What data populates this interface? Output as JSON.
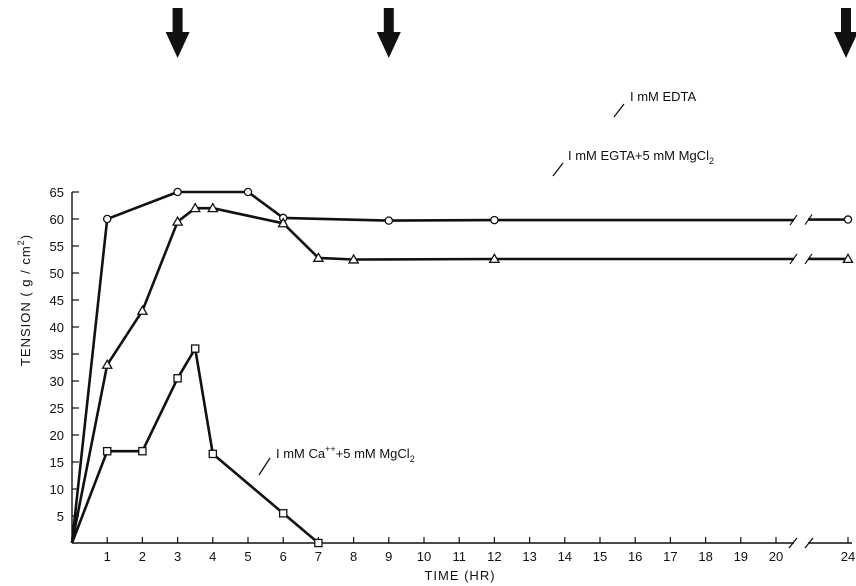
{
  "chart_data": {
    "type": "line",
    "xlabel": "TIME (HR)",
    "ylabel": "TENSION (g/cm²)",
    "ylabel_parts": {
      "main": "TENSION ( g / cm",
      "sup": "2",
      "close": ")"
    },
    "ylim": [
      0,
      65
    ],
    "xlim": [
      0,
      24
    ],
    "x_axis_break_between": [
      20,
      24
    ],
    "grid": false,
    "legend": "none",
    "y_ticks": [
      5,
      10,
      15,
      20,
      25,
      30,
      35,
      40,
      45,
      50,
      55,
      60,
      65
    ],
    "x_ticks": [
      1,
      2,
      3,
      4,
      5,
      6,
      7,
      8,
      9,
      10,
      11,
      12,
      13,
      14,
      15,
      16,
      17,
      18,
      19,
      20,
      24
    ],
    "arrows_at_x": [
      3,
      9,
      24
    ],
    "series": [
      {
        "name": "I mM EDTA",
        "label_parts": {
          "a": "I mM EDTA"
        },
        "marker": "circle",
        "x": [
          0,
          1,
          3,
          5,
          6,
          9,
          12,
          24
        ],
        "y": [
          0,
          60,
          65,
          65,
          60.2,
          59.7,
          59.8,
          59.9
        ]
      },
      {
        "name": "I mM EGTA+5 mM MgCl2",
        "label_parts": {
          "a": "I mM EGTA+5 mM MgCl",
          "sub": "2"
        },
        "marker": "triangle",
        "x": [
          0,
          1,
          2,
          3,
          3.5,
          4,
          6,
          7,
          8,
          12,
          24
        ],
        "y": [
          0,
          33,
          43,
          59.5,
          62,
          62,
          59.2,
          52.8,
          52.5,
          52.6,
          52.6
        ]
      },
      {
        "name": "I mM Ca++ +5 mM MgCl2",
        "label_parts": {
          "a": "I mM Ca",
          "sup": "++",
          "b": "+5 mM MgCl",
          "sub": "2"
        },
        "marker": "square",
        "x": [
          0,
          1,
          2,
          3,
          3.5,
          4,
          6,
          7
        ],
        "y": [
          0,
          17,
          17,
          30.5,
          36,
          16.5,
          5.5,
          0
        ]
      }
    ]
  }
}
